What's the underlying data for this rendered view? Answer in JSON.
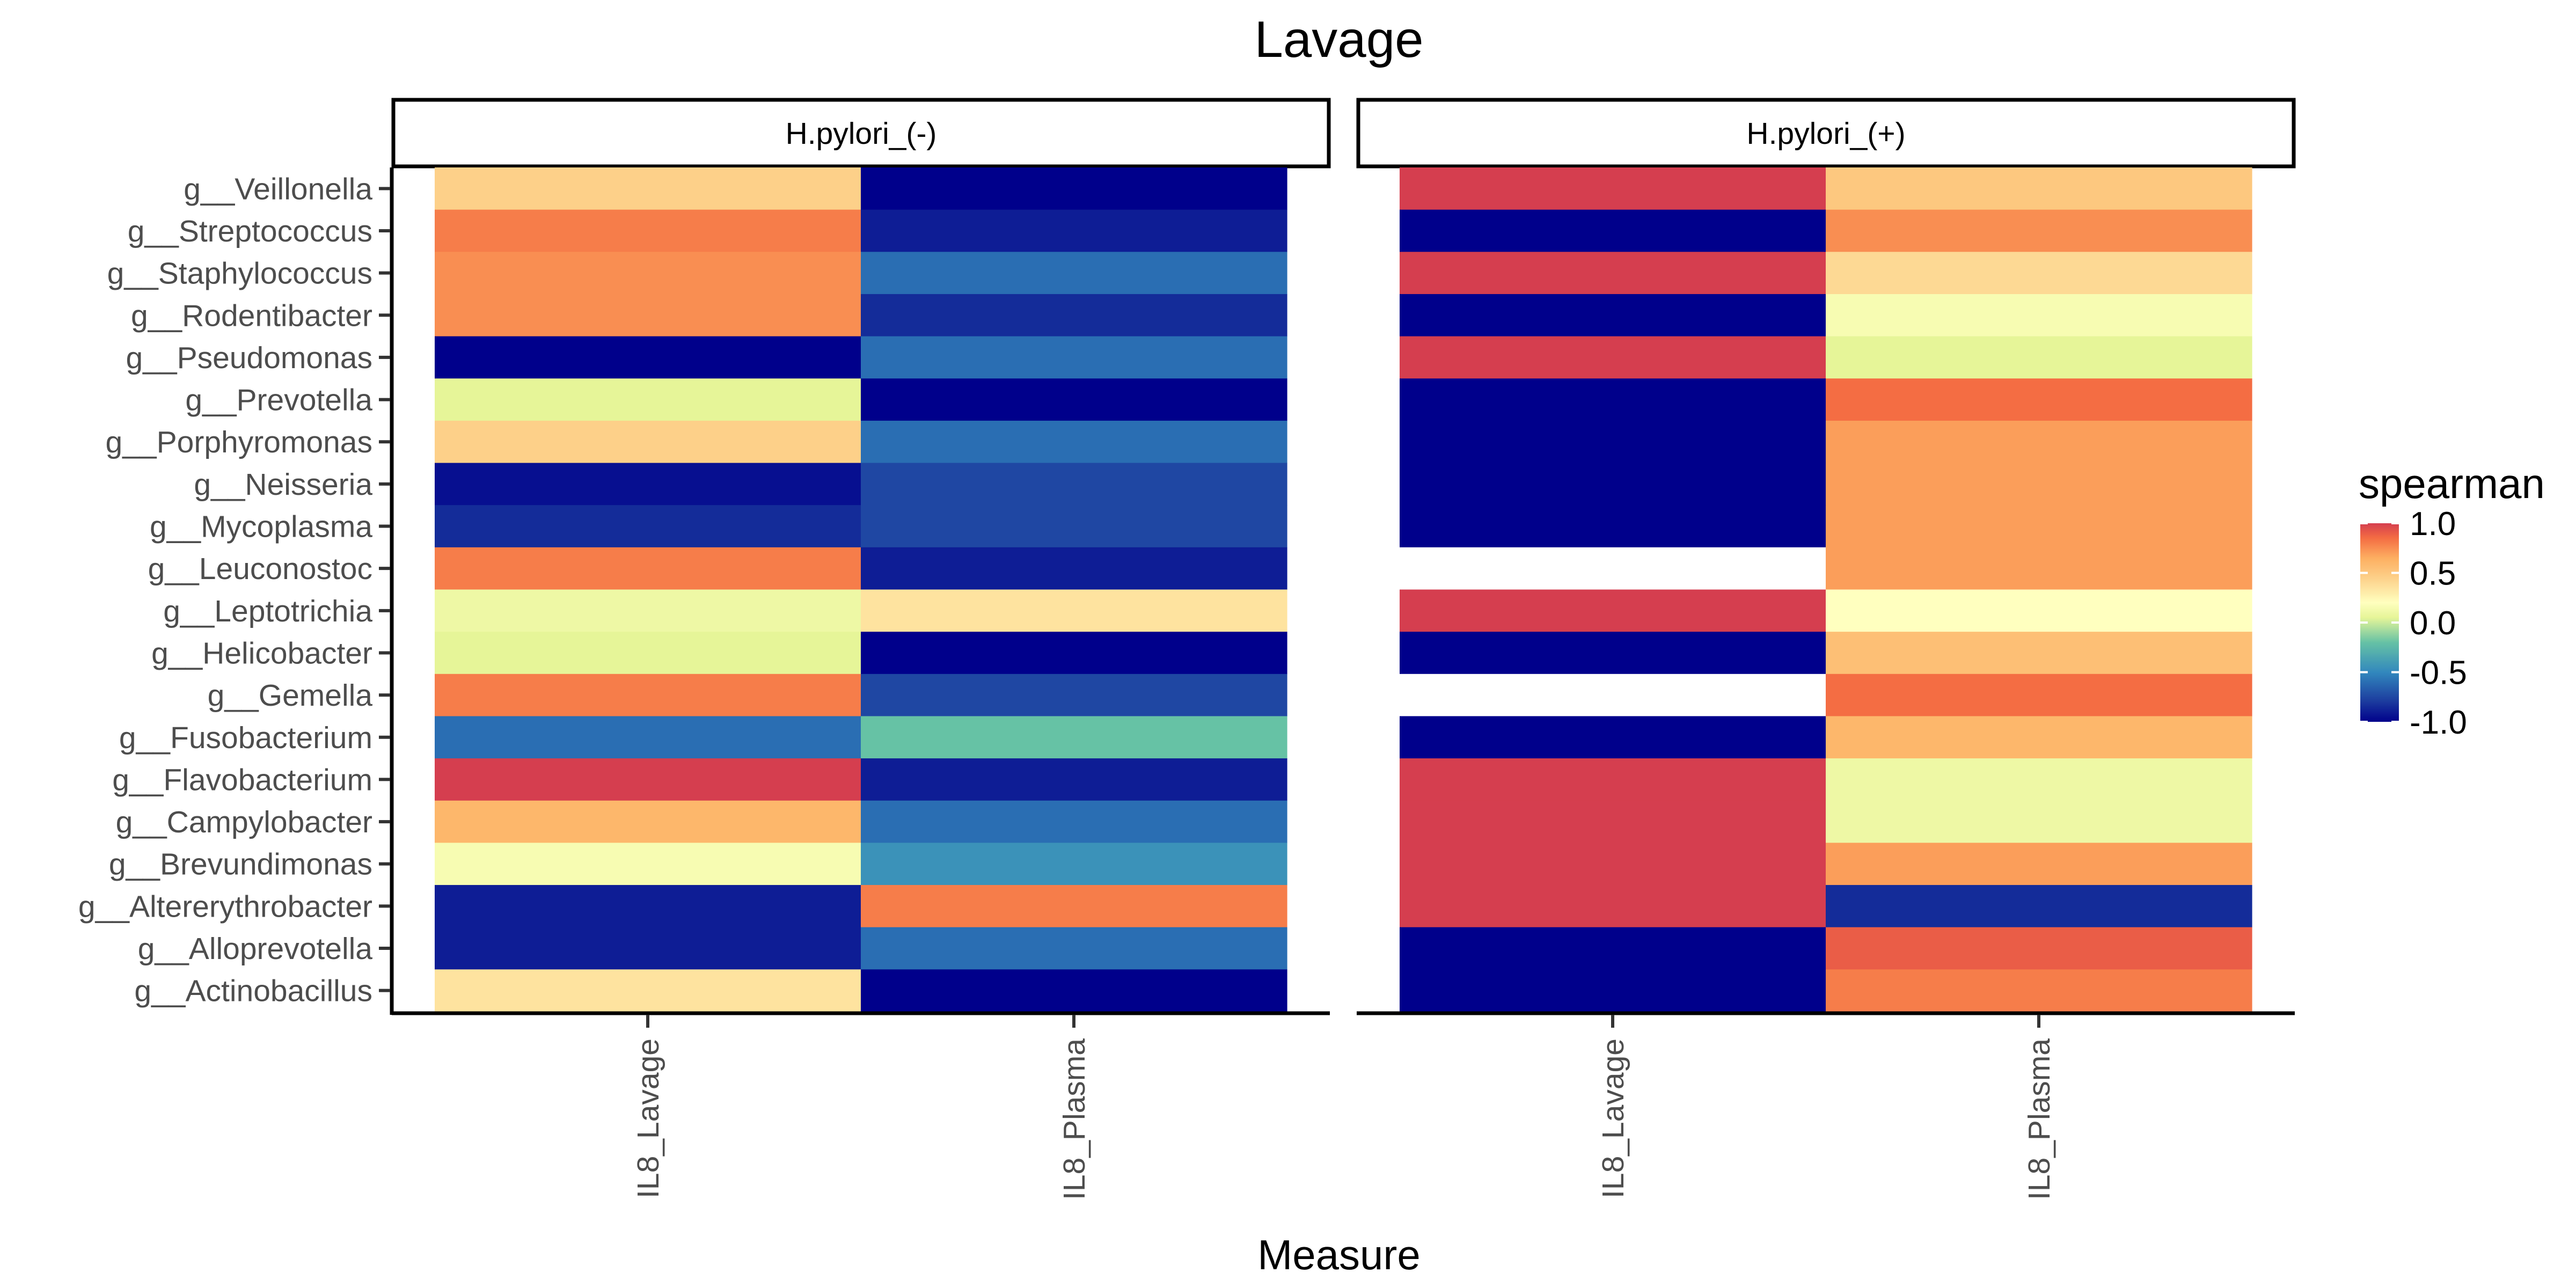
{
  "chart_data": {
    "type": "heatmap",
    "title": "Lavage",
    "xlabel": "Measure",
    "ylabel": "",
    "facets": [
      "H.pylori_(-)",
      "H.pylori_(+)"
    ],
    "x_categories": [
      "IL8_Lavage",
      "IL8_Plasma"
    ],
    "y_categories": [
      "g__Veillonella",
      "g__Streptococcus",
      "g__Staphylococcus",
      "g__Rodentibacter",
      "g__Pseudomonas",
      "g__Prevotella",
      "g__Porphyromonas",
      "g__Neisseria",
      "g__Mycoplasma",
      "g__Leuconostoc",
      "g__Leptotrichia",
      "g__Helicobacter",
      "g__Gemella",
      "g__Fusobacterium",
      "g__Flavobacterium",
      "g__Campylobacter",
      "g__Brevundimonas",
      "g__Altererythrobacter",
      "g__Alloprevotella",
      "g__Actinobacillus"
    ],
    "values": [
      [
        [
          0.45,
          -1.0
        ],
        [
          0.8,
          -0.9
        ],
        [
          0.75,
          -0.6
        ],
        [
          0.75,
          -0.85
        ],
        [
          -1.0,
          -0.6
        ],
        [
          0.05,
          -1.0
        ],
        [
          0.45,
          -0.6
        ],
        [
          -0.95,
          -0.75
        ],
        [
          -0.85,
          -0.75
        ],
        [
          0.8,
          -0.9
        ],
        [
          0.1,
          0.35
        ],
        [
          0.05,
          -1.0
        ],
        [
          0.8,
          -0.75
        ],
        [
          -0.6,
          -0.2
        ],
        [
          1.0,
          -0.9
        ],
        [
          0.6,
          -0.6
        ],
        [
          0.15,
          -0.45
        ],
        [
          -0.9,
          0.8
        ],
        [
          -0.9,
          -0.6
        ],
        [
          0.35,
          -1.0
        ]
      ],
      [
        [
          1.0,
          0.5
        ],
        [
          -1.0,
          0.75
        ],
        [
          1.0,
          0.4
        ],
        [
          -1.0,
          0.15
        ],
        [
          1.0,
          0.05
        ],
        [
          -1.0,
          0.85
        ],
        [
          -1.0,
          0.7
        ],
        [
          -1.0,
          0.7
        ],
        [
          -1.0,
          0.7
        ],
        [
          null,
          0.7
        ],
        [
          1.0,
          0.2
        ],
        [
          -1.0,
          0.55
        ],
        [
          null,
          0.85
        ],
        [
          -1.0,
          0.6
        ],
        [
          1.0,
          0.1
        ],
        [
          1.0,
          0.1
        ],
        [
          1.0,
          0.7
        ],
        [
          1.0,
          -0.85
        ],
        [
          -1.0,
          0.9
        ],
        [
          -1.0,
          0.8
        ]
      ]
    ],
    "legend": {
      "title": "spearman",
      "position": "right",
      "breaks": [
        1.0,
        0.5,
        0.0,
        -0.5,
        -1.0
      ],
      "break_labels": [
        "1.0",
        "0.5",
        "0.0",
        "-0.5",
        "-1.0"
      ],
      "range": [
        -1.0,
        1.0
      ]
    },
    "palette": "Spectral",
    "colors": {
      "-1.0": "#00008B",
      "-0.8": "#1B3A9E",
      "-0.5": "#3288BD",
      "-0.2": "#66C2A5",
      "0.05": "#E6F598",
      "0.2": "#FFFFBF",
      "0.45": "#FDD089",
      "0.65": "#FDAE61",
      "0.85": "#F46D43",
      "1.0": "#D53E4F"
    },
    "na_color": "#FFFFFF",
    "grid": false
  }
}
